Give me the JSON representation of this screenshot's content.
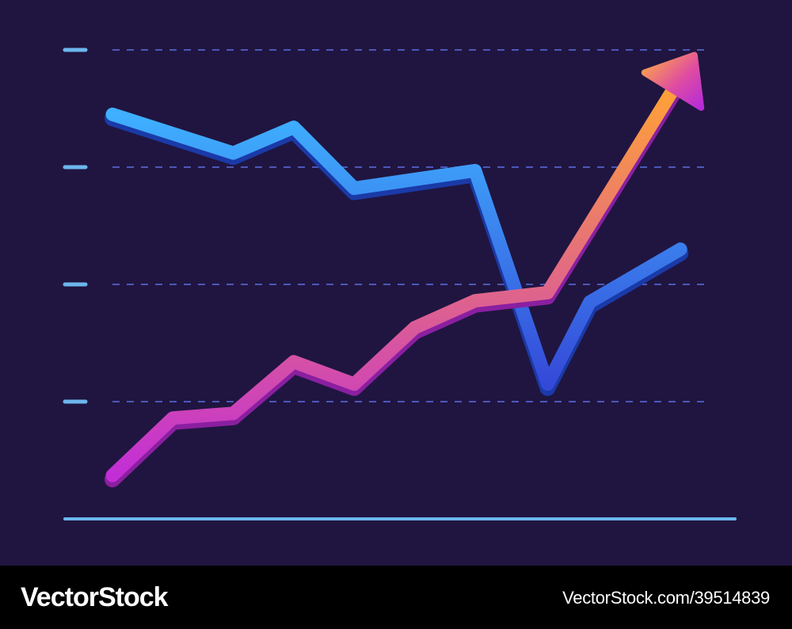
{
  "chart_data": {
    "type": "line",
    "title": "",
    "xlabel": "",
    "ylabel": "",
    "x": [
      0,
      1,
      2,
      3,
      4,
      5,
      6,
      7,
      8,
      9,
      10
    ],
    "xlim": [
      0,
      10
    ],
    "ylim": [
      0,
      4
    ],
    "grid": true,
    "legend": "none",
    "series": [
      {
        "color_start": "#2f9bff",
        "color_end": "#3a4fe0",
        "values": [
          3.45,
          3.12,
          3.34,
          2.82,
          2.97,
          1.15,
          1.85,
          2.3
        ],
        "x": [
          0,
          2,
          3,
          4,
          6,
          7.2,
          7.9,
          9.4
        ]
      },
      {
        "color_start": "#ff9a2e",
        "color_end": "#c42fd8",
        "arrow": true,
        "values": [
          0.37,
          0.86,
          0.9,
          1.34,
          1.15,
          1.63,
          1.86,
          1.93,
          3.68
        ],
        "x": [
          0,
          1,
          2,
          3,
          4,
          5,
          6,
          7.2,
          9.3
        ]
      }
    ],
    "colors": {
      "background": "#201540",
      "grid": "#5a6fe0",
      "tick": "#6cb6ee",
      "axis": "#6cb6ee"
    }
  },
  "footer": {
    "logo": "VectorStock",
    "id_text": "VectorStock.com/39514839"
  }
}
